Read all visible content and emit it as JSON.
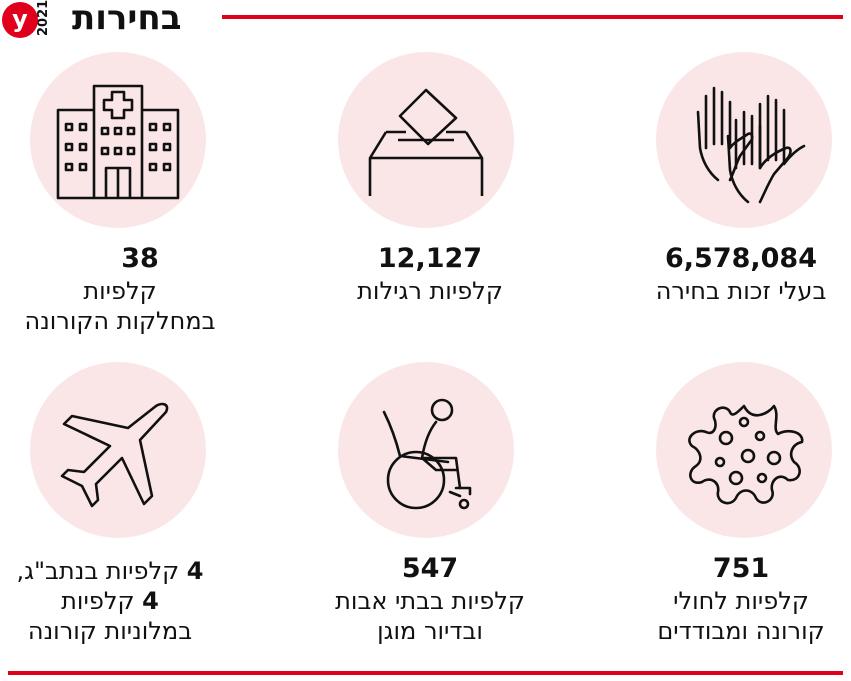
{
  "header": {
    "title": "בחירות",
    "year": "2021",
    "logo_letter": "y"
  },
  "items": [
    {
      "value": "6,578,084",
      "label_lines": [
        "בעלי זכות בחירה"
      ],
      "icon": "raised-hands-icon"
    },
    {
      "value": "12,127",
      "label_lines": [
        "קלפיות רגילות"
      ],
      "icon": "ballot-box-icon"
    },
    {
      "value": "38",
      "label_lines": [
        "קלפיות",
        "במחלקות הקורונה"
      ],
      "icon": "hospital-icon"
    },
    {
      "value": "751",
      "label_lines": [
        "קלפיות לחולי",
        "קורונה ומבודדים"
      ],
      "icon": "virus-icon"
    },
    {
      "value": "547",
      "label_lines": [
        "קלפיות בבתי אבות",
        "ובדיור מוגן"
      ],
      "icon": "wheelchair-icon"
    },
    {
      "value": "",
      "label_lines": [
        "קלפיות בנתב\"ג,",
        "קלפיות",
        "במלוניות קורונה"
      ],
      "label_numbers": [
        "4",
        "4"
      ],
      "icon": "airplane-icon"
    }
  ],
  "colors": {
    "accent": "#e0001b",
    "circle": "#fbe6e7",
    "text": "#111111"
  }
}
